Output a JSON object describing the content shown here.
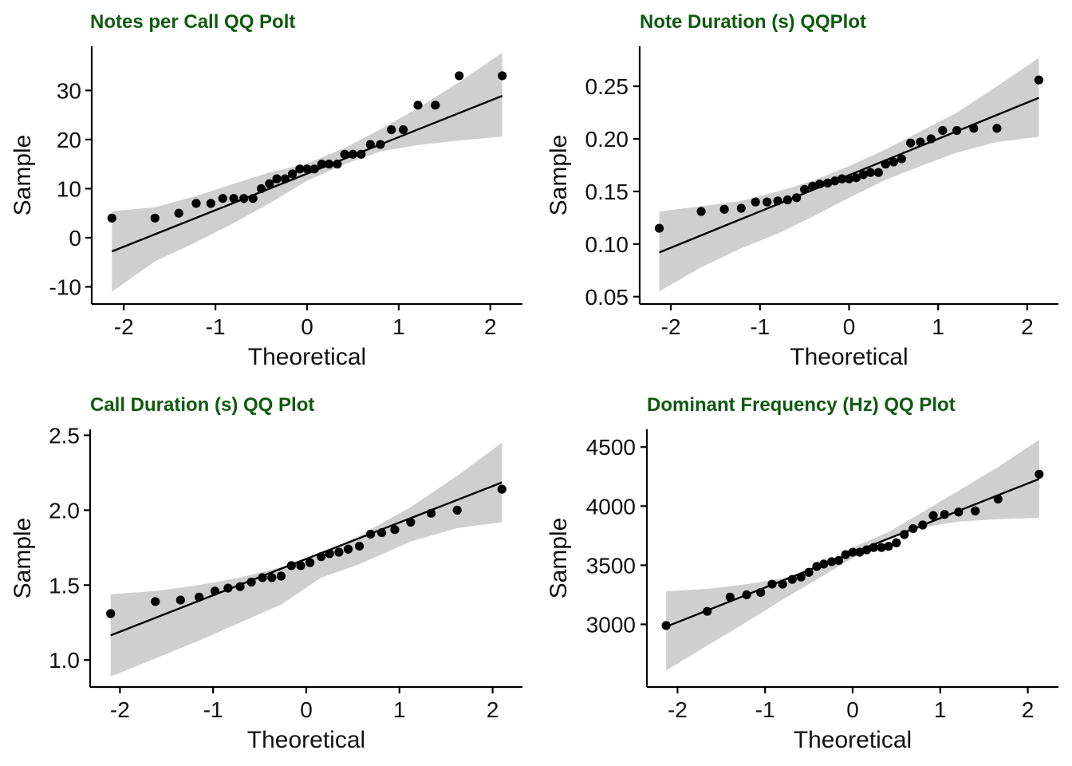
{
  "chart_data": [
    {
      "type": "scatter",
      "title": "Notes per Call QQ Polt",
      "xlabel": "Theoretical",
      "ylabel": "Sample",
      "xlim": [
        -2.35,
        2.35
      ],
      "ylim": [
        -13.5,
        39.0
      ],
      "xticks": [
        -2,
        -1,
        0,
        1,
        2
      ],
      "xtick_labels": [
        "-2",
        "-1",
        "0",
        "1",
        "2"
      ],
      "yticks": [
        -10,
        0,
        10,
        20,
        30
      ],
      "ytick_labels": [
        "-10",
        "0",
        "10",
        "20",
        "30"
      ],
      "grid": false,
      "points": {
        "x": [
          -2.13,
          -1.66,
          -1.4,
          -1.21,
          -1.05,
          -0.92,
          -0.8,
          -0.69,
          -0.59,
          -0.5,
          -0.41,
          -0.33,
          -0.24,
          -0.16,
          -0.08,
          0.0,
          0.08,
          0.16,
          0.24,
          0.33,
          0.41,
          0.5,
          0.59,
          0.69,
          0.8,
          0.92,
          1.05,
          1.21,
          1.4,
          1.66,
          2.13
        ],
        "y": [
          4,
          4,
          5,
          7,
          7,
          8,
          8,
          8,
          8,
          10,
          11,
          12,
          12,
          13,
          14,
          14,
          14,
          15,
          15,
          15,
          17,
          17,
          17,
          19,
          19,
          22,
          22,
          27,
          27,
          33,
          33
        ]
      },
      "reference_line": {
        "x": [
          -2.13,
          2.13
        ],
        "y": [
          -2.8,
          28.9
        ]
      },
      "confidence_band": {
        "x": [
          -2.13,
          -1.66,
          -1.21,
          -0.8,
          -0.41,
          0.0,
          0.41,
          0.8,
          1.21,
          1.66,
          2.13
        ],
        "lower": [
          -11.0,
          -4.8,
          -0.9,
          3.0,
          7.0,
          11.6,
          15.0,
          17.6,
          18.9,
          19.8,
          20.6
        ],
        "upper": [
          5.4,
          6.2,
          8.5,
          11.0,
          13.3,
          15.1,
          18.3,
          22.1,
          26.4,
          31.7,
          37.7
        ]
      }
    },
    {
      "type": "scatter",
      "title": "Note Duration (s) QQPlot",
      "xlabel": "Theoretical",
      "ylabel": "Sample",
      "xlim": [
        -2.35,
        2.35
      ],
      "ylim": [
        0.043,
        0.288
      ],
      "xticks": [
        -2,
        -1,
        0,
        1,
        2
      ],
      "xtick_labels": [
        "-2",
        "-1",
        "0",
        "1",
        "2"
      ],
      "yticks": [
        0.05,
        0.1,
        0.15,
        0.2,
        0.25
      ],
      "ytick_labels": [
        "0.05",
        "0.10",
        "0.15",
        "0.20",
        "0.25"
      ],
      "grid": false,
      "points": {
        "x": [
          -2.13,
          -1.66,
          -1.4,
          -1.21,
          -1.05,
          -0.92,
          -0.8,
          -0.69,
          -0.59,
          -0.5,
          -0.41,
          -0.33,
          -0.24,
          -0.16,
          -0.08,
          0.0,
          0.08,
          0.16,
          0.24,
          0.33,
          0.41,
          0.5,
          0.59,
          0.69,
          0.8,
          0.92,
          1.05,
          1.21,
          1.4,
          1.66,
          2.13
        ],
        "y": [
          0.115,
          0.131,
          0.133,
          0.134,
          0.14,
          0.14,
          0.141,
          0.142,
          0.144,
          0.152,
          0.155,
          0.157,
          0.158,
          0.16,
          0.162,
          0.162,
          0.163,
          0.166,
          0.168,
          0.168,
          0.176,
          0.178,
          0.181,
          0.196,
          0.197,
          0.2,
          0.208,
          0.208,
          0.21,
          0.21,
          0.256
        ]
      },
      "reference_line": {
        "x": [
          -2.13,
          2.13
        ],
        "y": [
          0.092,
          0.239
        ]
      },
      "confidence_band": {
        "x": [
          -2.13,
          -1.66,
          -1.21,
          -0.8,
          -0.41,
          0.0,
          0.41,
          0.8,
          1.21,
          1.66,
          2.13
        ],
        "lower": [
          0.055,
          0.078,
          0.096,
          0.11,
          0.126,
          0.144,
          0.161,
          0.174,
          0.187,
          0.197,
          0.202
        ],
        "upper": [
          0.131,
          0.136,
          0.141,
          0.15,
          0.16,
          0.174,
          0.19,
          0.207,
          0.225,
          0.25,
          0.277
        ]
      }
    },
    {
      "type": "scatter",
      "title": "Call Duration (s) QQ Plot",
      "xlabel": "Theoretical",
      "ylabel": "Sample",
      "xlim": [
        -2.32,
        2.32
      ],
      "ylim": [
        0.82,
        2.54
      ],
      "xticks": [
        -2,
        -1,
        0,
        1,
        2
      ],
      "xtick_labels": [
        "-2",
        "-1",
        "0",
        "1",
        "2"
      ],
      "yticks": [
        1.0,
        1.5,
        2.0,
        2.5
      ],
      "ytick_labels": [
        "1.0",
        "1.5",
        "2.0",
        "2.5"
      ],
      "grid": false,
      "points": {
        "x": [
          -2.1,
          -1.62,
          -1.35,
          -1.15,
          -0.98,
          -0.84,
          -0.71,
          -0.59,
          -0.47,
          -0.37,
          -0.27,
          -0.16,
          -0.06,
          0.04,
          0.16,
          0.25,
          0.35,
          0.45,
          0.57,
          0.69,
          0.81,
          0.95,
          1.12,
          1.34,
          1.62,
          2.1
        ],
        "y": [
          1.31,
          1.39,
          1.4,
          1.42,
          1.46,
          1.48,
          1.49,
          1.52,
          1.55,
          1.55,
          1.56,
          1.63,
          1.63,
          1.65,
          1.69,
          1.71,
          1.72,
          1.74,
          1.76,
          1.84,
          1.85,
          1.87,
          1.92,
          1.98,
          2.0,
          2.14
        ]
      },
      "reference_line": {
        "x": [
          -2.1,
          2.1
        ],
        "y": [
          1.165,
          2.185
        ]
      },
      "confidence_band": {
        "x": [
          -2.1,
          -1.62,
          -1.15,
          -0.71,
          -0.27,
          0.16,
          0.57,
          1.12,
          1.62,
          2.1
        ],
        "lower": [
          0.89,
          1.01,
          1.13,
          1.25,
          1.37,
          1.55,
          1.64,
          1.79,
          1.88,
          1.92
        ],
        "upper": [
          1.44,
          1.46,
          1.5,
          1.55,
          1.62,
          1.7,
          1.83,
          2.02,
          2.23,
          2.45
        ]
      }
    },
    {
      "type": "scatter",
      "title": "Dominant Frequency (Hz) QQ Plot",
      "xlabel": "Theoretical",
      "ylabel": "Sample",
      "xlim": [
        -2.35,
        2.35
      ],
      "ylim": [
        2470,
        4650
      ],
      "xticks": [
        -2,
        -1,
        0,
        1,
        2
      ],
      "xtick_labels": [
        "-2",
        "-1",
        "0",
        "1",
        "2"
      ],
      "yticks": [
        3000,
        3500,
        4000,
        4500
      ],
      "ytick_labels": [
        "3000",
        "3500",
        "4000",
        "4500"
      ],
      "grid": false,
      "points": {
        "x": [
          -2.13,
          -1.66,
          -1.4,
          -1.21,
          -1.05,
          -0.92,
          -0.8,
          -0.69,
          -0.59,
          -0.5,
          -0.41,
          -0.33,
          -0.24,
          -0.16,
          -0.08,
          0.0,
          0.08,
          0.16,
          0.24,
          0.33,
          0.41,
          0.5,
          0.59,
          0.69,
          0.8,
          0.92,
          1.05,
          1.21,
          1.4,
          1.66,
          2.13
        ],
        "y": [
          2990,
          3110,
          3230,
          3250,
          3270,
          3340,
          3340,
          3380,
          3400,
          3440,
          3490,
          3510,
          3530,
          3540,
          3590,
          3610,
          3610,
          3630,
          3650,
          3650,
          3660,
          3690,
          3760,
          3810,
          3840,
          3920,
          3930,
          3950,
          3960,
          4060,
          4270
        ]
      },
      "reference_line": {
        "x": [
          -2.13,
          2.13
        ],
        "y": [
          2980,
          4230
        ]
      },
      "confidence_band": {
        "x": [
          -2.13,
          -1.66,
          -1.21,
          -0.8,
          -0.41,
          0.0,
          0.41,
          0.8,
          1.21,
          1.66,
          2.13
        ],
        "lower": [
          2610,
          2820,
          3020,
          3210,
          3380,
          3560,
          3720,
          3820,
          3870,
          3890,
          3900
        ],
        "upper": [
          3280,
          3300,
          3340,
          3390,
          3460,
          3650,
          3780,
          3950,
          4130,
          4330,
          4560
        ]
      }
    }
  ]
}
